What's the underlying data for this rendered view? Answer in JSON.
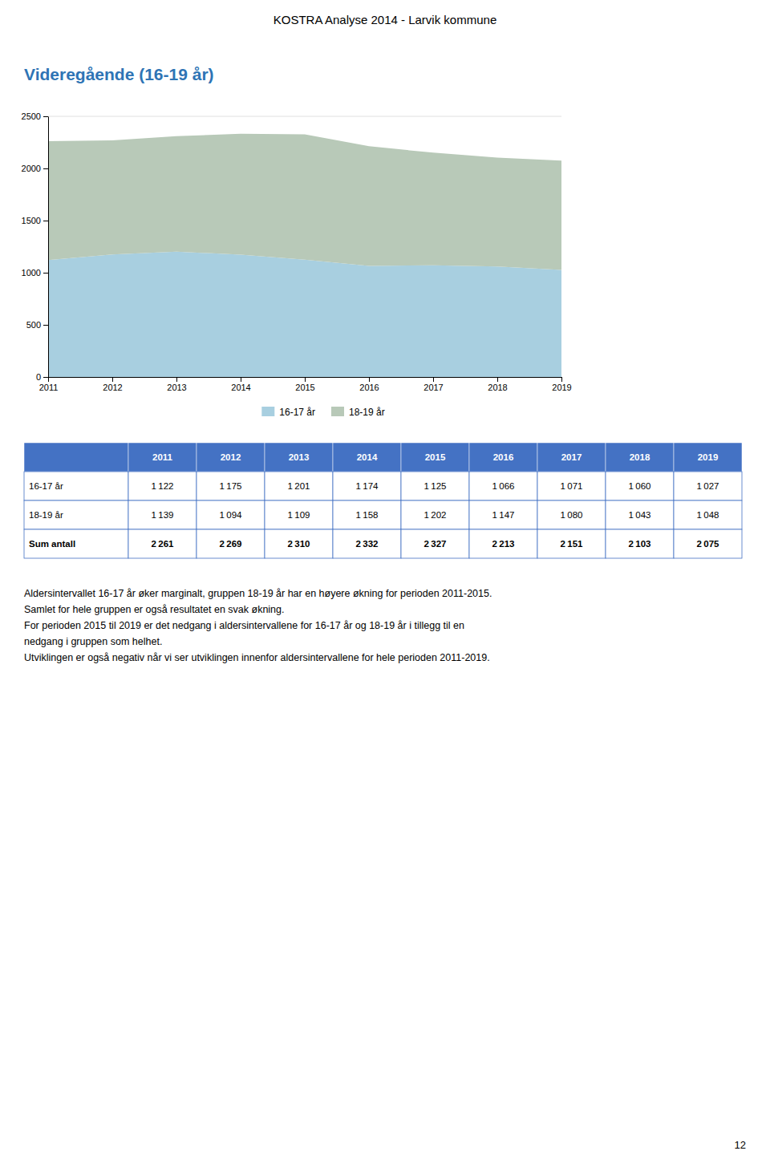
{
  "page_title": "KOSTRA Analyse 2014 - Larvik kommune",
  "section_title": "Videregående (16-19 år)",
  "chart_data": {
    "type": "area",
    "stacked": true,
    "x": [
      2011,
      2012,
      2013,
      2014,
      2015,
      2016,
      2017,
      2018,
      2019
    ],
    "series": [
      {
        "name": "16-17 år",
        "color": "#a8cfe0",
        "values": [
          1122,
          1175,
          1201,
          1174,
          1125,
          1066,
          1071,
          1060,
          1027
        ]
      },
      {
        "name": "18-19 år",
        "color": "#b8c9b8",
        "values": [
          1139,
          1094,
          1109,
          1158,
          1202,
          1147,
          1080,
          1043,
          1048
        ]
      }
    ],
    "xlim": [
      2011,
      2019
    ],
    "xticks": [
      2011,
      2012,
      2013,
      2014,
      2015,
      2016,
      2017,
      2018,
      2019
    ],
    "ylim": [
      0,
      2500
    ],
    "yticks": [
      0,
      500,
      1000,
      1500,
      2000,
      2500
    ],
    "grid": true
  },
  "table": {
    "columns": [
      2011,
      2012,
      2013,
      2014,
      2015,
      2016,
      2017,
      2018,
      2019
    ],
    "rows": [
      {
        "label": "16-17 år",
        "values": [
          1122,
          1175,
          1201,
          1174,
          1125,
          1066,
          1071,
          1060,
          1027
        ],
        "value_labels": [
          "1 122",
          "1 175",
          "1 201",
          "1 174",
          "1 125",
          "1 066",
          "1 071",
          "1 060",
          "1 027"
        ]
      },
      {
        "label": "18-19 år",
        "values": [
          1139,
          1094,
          1109,
          1158,
          1202,
          1147,
          1080,
          1043,
          1048
        ],
        "value_labels": [
          "1 139",
          "1 094",
          "1 109",
          "1 158",
          "1 202",
          "1 147",
          "1 080",
          "1 043",
          "1 048"
        ]
      },
      {
        "label": "Sum antall",
        "values": [
          2261,
          2269,
          2310,
          2332,
          2327,
          2213,
          2151,
          2103,
          2075
        ],
        "value_labels": [
          "2 261",
          "2 269",
          "2 310",
          "2 332",
          "2 327",
          "2 213",
          "2 151",
          "2 103",
          "2 075"
        ]
      }
    ]
  },
  "paragraph_lines": [
    "Aldersintervallet 16-17 år øker marginalt, gruppen 18-19 år har en høyere økning for perioden 2011-2015.",
    "Samlet for hele gruppen er også resultatet en svak økning.",
    "For perioden 2015 til 2019 er det nedgang i aldersintervallene for 16-17 år og 18-19 år i tillegg til en",
    "nedgang i gruppen som helhet.",
    "Utviklingen er også negativ når vi ser utviklingen innenfor aldersintervallene for hele perioden 2011-2019."
  ],
  "page_number": "12"
}
